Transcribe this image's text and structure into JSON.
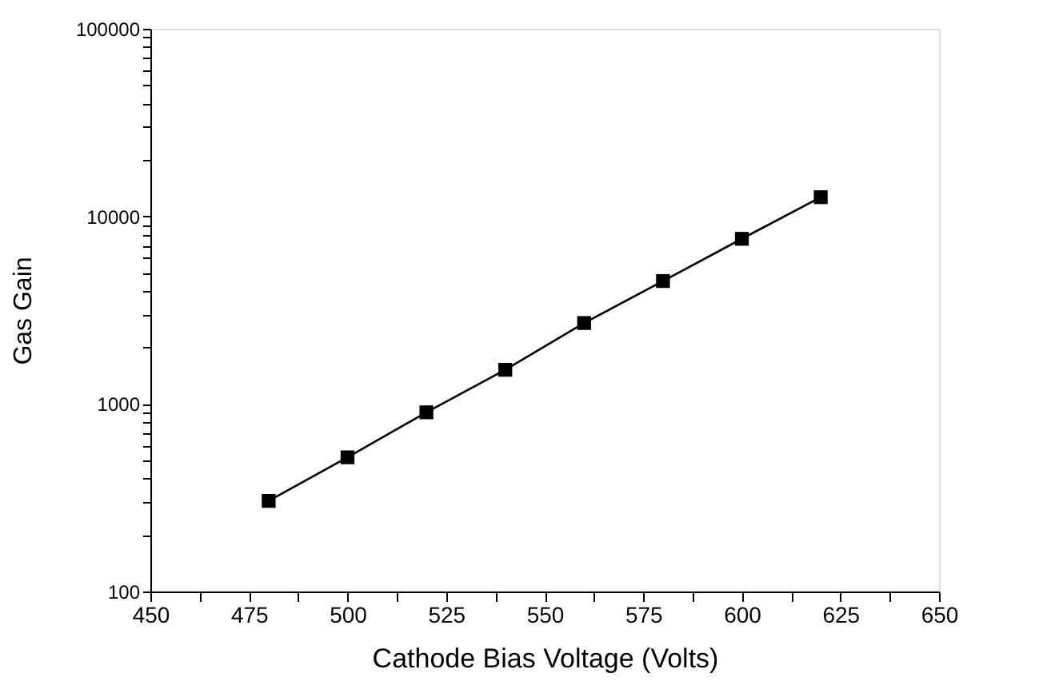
{
  "chart_data": {
    "type": "line",
    "xlabel": "Cathode Bias Voltage (Volts)",
    "ylabel": "Gas Gain",
    "x": [
      480,
      500,
      520,
      540,
      560,
      580,
      600,
      620
    ],
    "series": [
      {
        "color": "#000000",
        "values": [
          304,
          519,
          902,
          1520,
          2700,
          4520,
          7590,
          12650
        ]
      }
    ],
    "xlim": [
      450,
      650
    ],
    "xticks": [
      450,
      {
        "value": 462.5,
        "label": null
      },
      475,
      {
        "value": 487.5,
        "label": null
      },
      500,
      {
        "value": 512.5,
        "label": null
      },
      525,
      {
        "value": 537.5,
        "label": null
      },
      550,
      {
        "value": 562.5,
        "label": null
      },
      575,
      {
        "value": 587.5,
        "label": null
      },
      600,
      {
        "value": 612.5,
        "label": null
      },
      625,
      {
        "value": 637.5,
        "label": null
      },
      650
    ],
    "ylim": [
      100,
      100000
    ],
    "yticks": [
      100,
      {
        "value": 200,
        "label": null
      },
      {
        "value": 300,
        "label": null
      },
      {
        "value": 400,
        "label": null
      },
      {
        "value": 500,
        "label": null
      },
      {
        "value": 600,
        "label": null
      },
      {
        "value": 700,
        "label": null
      },
      {
        "value": 800,
        "label": null
      },
      {
        "value": 900,
        "label": null
      },
      1000,
      {
        "value": 2000,
        "label": null
      },
      {
        "value": 3000,
        "label": null
      },
      {
        "value": 4000,
        "label": null
      },
      {
        "value": 5000,
        "label": null
      },
      {
        "value": 6000,
        "label": null
      },
      {
        "value": 7000,
        "label": null
      },
      {
        "value": 8000,
        "label": null
      },
      {
        "value": 9000,
        "label": null
      },
      10000,
      {
        "value": 20000,
        "label": null
      },
      {
        "value": 30000,
        "label": null
      },
      {
        "value": 40000,
        "label": null
      },
      {
        "value": 50000,
        "label": null
      },
      {
        "value": 60000,
        "label": null
      },
      {
        "value": 70000,
        "label": null
      },
      {
        "value": 80000,
        "label": null
      },
      {
        "value": 90000,
        "label": null
      },
      100000
    ],
    "log": true,
    "grid": false,
    "legend": false,
    "marker": "square",
    "line_style": "solid"
  }
}
